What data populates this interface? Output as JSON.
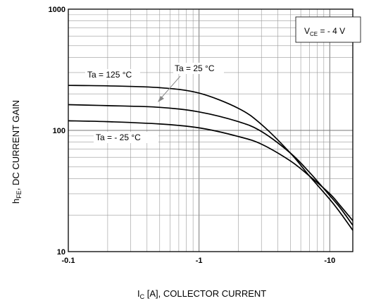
{
  "chart_data": {
    "type": "line",
    "x_scale": "log",
    "y_scale": "log",
    "xlim": [
      -0.1,
      -15
    ],
    "ylim": [
      10,
      1000
    ],
    "grid": true,
    "x_ticks": [
      {
        "value": -0.1,
        "label": "-0.1"
      },
      {
        "value": -1,
        "label": "-1"
      },
      {
        "value": -10,
        "label": "-10"
      }
    ],
    "y_ticks": [
      {
        "value": 10,
        "label": "10"
      },
      {
        "value": 100,
        "label": "100"
      },
      {
        "value": 1000,
        "label": "1000"
      }
    ],
    "xlabel": {
      "main": "I",
      "sub": "C",
      "rest": " [A], COLLECTOR CURRENT"
    },
    "ylabel": {
      "main": "h",
      "sub": "FE",
      "rest": ", DC CURRENT GAIN"
    },
    "condition": {
      "main": "V",
      "sub": "CE",
      "rest": " = - 4 V"
    },
    "series": [
      {
        "name": "Ta = 125 °C",
        "color": "#000000",
        "x": [
          -0.1,
          -0.2,
          -0.5,
          -1,
          -2,
          -3,
          -5,
          -7,
          -10,
          -12,
          -15
        ],
        "y": [
          235,
          233,
          225,
          203,
          152,
          112,
          65,
          42,
          27,
          21,
          15
        ]
      },
      {
        "name": "Ta = 25 °C",
        "color": "#000000",
        "x": [
          -0.1,
          -0.2,
          -0.5,
          -1,
          -2,
          -3,
          -5,
          -7,
          -10,
          -12,
          -15
        ],
        "y": [
          163,
          160,
          155,
          142,
          118,
          98,
          65,
          45,
          29,
          23,
          16.5
        ]
      },
      {
        "name": "Ta = - 25 °C",
        "color": "#000000",
        "x": [
          -0.1,
          -0.2,
          -0.5,
          -1,
          -2,
          -3,
          -5,
          -7,
          -10,
          -12,
          -15
        ],
        "y": [
          120,
          118,
          113,
          105,
          89,
          77,
          56,
          42,
          30,
          24,
          18
        ]
      }
    ],
    "annotations": [
      {
        "text": "Ta = 125 °C"
      },
      {
        "text": "Ta = 25 °C"
      },
      {
        "text": "Ta = - 25 °C"
      }
    ]
  }
}
